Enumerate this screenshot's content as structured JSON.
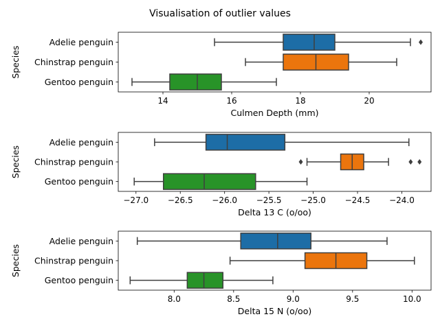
{
  "figure_title": "Visualisation of outlier values",
  "chart_data": [
    {
      "type": "box",
      "orientation": "horizontal",
      "ylabel": "Species",
      "xlabel": "Culmen Depth (mm)",
      "xlim": [
        12.7,
        21.8
      ],
      "xticks": [
        14,
        16,
        18,
        20
      ],
      "categories": [
        "Adelie penguin",
        "Chinstrap penguin",
        "Gentoo penguin"
      ],
      "colors": [
        "#1f77b4",
        "#ff7f0e",
        "#2ca02c"
      ],
      "boxes": [
        {
          "whisker_low": 15.5,
          "q1": 17.5,
          "median": 18.4,
          "q3": 19.0,
          "whisker_high": 21.2,
          "outliers": [
            21.5
          ]
        },
        {
          "whisker_low": 16.4,
          "q1": 17.5,
          "median": 18.45,
          "q3": 19.4,
          "whisker_high": 20.8,
          "outliers": []
        },
        {
          "whisker_low": 13.1,
          "q1": 14.2,
          "median": 15.0,
          "q3": 15.7,
          "whisker_high": 17.3,
          "outliers": []
        }
      ]
    },
    {
      "type": "box",
      "orientation": "horizontal",
      "ylabel": "Species",
      "xlabel": "Delta 13 C (o/oo)",
      "xlim": [
        -27.2,
        -23.67
      ],
      "xticks": [
        -27.0,
        -26.5,
        -26.0,
        -25.5,
        -25.0,
        -24.5,
        -24.0
      ],
      "categories": [
        "Adelie penguin",
        "Chinstrap penguin",
        "Gentoo penguin"
      ],
      "colors": [
        "#1f77b4",
        "#ff7f0e",
        "#2ca02c"
      ],
      "boxes": [
        {
          "whisker_low": -26.79,
          "q1": -26.21,
          "median": -25.97,
          "q3": -25.32,
          "whisker_high": -23.92,
          "outliers": []
        },
        {
          "whisker_low": -25.07,
          "q1": -24.69,
          "median": -24.56,
          "q3": -24.43,
          "whisker_high": -24.15,
          "outliers": [
            -25.14,
            -23.9,
            -23.8
          ]
        },
        {
          "whisker_low": -27.02,
          "q1": -26.69,
          "median": -26.23,
          "q3": -25.65,
          "whisker_high": -25.07,
          "outliers": []
        }
      ]
    },
    {
      "type": "box",
      "orientation": "horizontal",
      "ylabel": "Species",
      "xlabel": "Delta 15 N (o/oo)",
      "xlim": [
        7.53,
        10.16
      ],
      "xticks": [
        8.0,
        8.5,
        9.0,
        9.5,
        10.0
      ],
      "categories": [
        "Adelie penguin",
        "Chinstrap penguin",
        "Gentoo penguin"
      ],
      "colors": [
        "#1f77b4",
        "#ff7f0e",
        "#2ca02c"
      ],
      "boxes": [
        {
          "whisker_low": 7.69,
          "q1": 8.56,
          "median": 8.87,
          "q3": 9.15,
          "whisker_high": 9.79,
          "outliers": []
        },
        {
          "whisker_low": 8.47,
          "q1": 9.1,
          "median": 9.36,
          "q3": 9.62,
          "whisker_high": 10.02,
          "outliers": []
        },
        {
          "whisker_low": 7.63,
          "q1": 8.11,
          "median": 8.25,
          "q3": 8.41,
          "whisker_high": 8.83,
          "outliers": []
        }
      ]
    }
  ]
}
